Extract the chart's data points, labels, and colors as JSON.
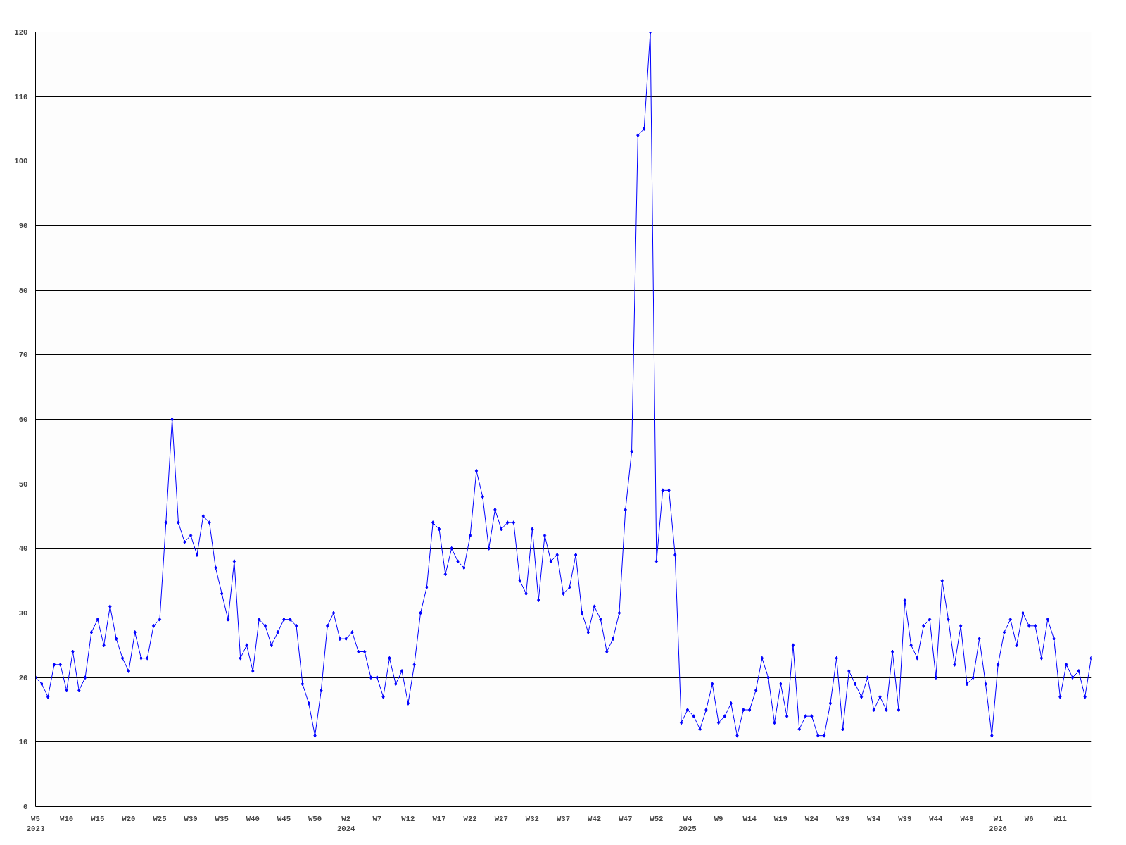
{
  "chart_data": {
    "type": "line",
    "categories": [
      "W5\n2023",
      null,
      null,
      null,
      null,
      "W10",
      null,
      null,
      null,
      null,
      "W15",
      null,
      null,
      null,
      null,
      "W20",
      null,
      null,
      null,
      null,
      "W25",
      null,
      null,
      null,
      null,
      "W30",
      null,
      null,
      null,
      null,
      "W35",
      null,
      null,
      null,
      null,
      "W40",
      null,
      null,
      null,
      null,
      "W45",
      null,
      null,
      null,
      null,
      "W50",
      null,
      null,
      null,
      null,
      "W2\n2024",
      null,
      null,
      null,
      null,
      "W7",
      null,
      null,
      null,
      null,
      "W12",
      null,
      null,
      null,
      null,
      "W17",
      null,
      null,
      null,
      null,
      "W22",
      null,
      null,
      null,
      null,
      "W27",
      null,
      null,
      null,
      null,
      "W32",
      null,
      null,
      null,
      null,
      "W37",
      null,
      null,
      null,
      null,
      "W42",
      null,
      null,
      null,
      null,
      "W47",
      null,
      null,
      null,
      null,
      "W52",
      null,
      null,
      null,
      null,
      "W4\n2025",
      null,
      null,
      null,
      null,
      "W9",
      null,
      null,
      null,
      null,
      "W14",
      null,
      null,
      null,
      null,
      "W19",
      null,
      null,
      null,
      null,
      "W24",
      null,
      null,
      null,
      null,
      "W29",
      null,
      null,
      null,
      null,
      "W34",
      null,
      null,
      null,
      null,
      "W39",
      null,
      null,
      null,
      null,
      "W44",
      null,
      null,
      null,
      null,
      "W49",
      null,
      null,
      null,
      null,
      "W1\n2026",
      null,
      null,
      null,
      null,
      "W6",
      null,
      null,
      null,
      null,
      "W11",
      null,
      null,
      null,
      null,
      null
    ],
    "series": [
      {
        "color": "#0000ff",
        "values": [
          20,
          19,
          17,
          22,
          22,
          18,
          24,
          18,
          20,
          27,
          29,
          25,
          31,
          26,
          23,
          21,
          27,
          23,
          23,
          28,
          29,
          44,
          60,
          44,
          41,
          42,
          39,
          45,
          44,
          37,
          33,
          29,
          38,
          23,
          25,
          21,
          29,
          28,
          25,
          27,
          29,
          29,
          28,
          19,
          16,
          11,
          18,
          28,
          30,
          26,
          26,
          27,
          24,
          24,
          20,
          20,
          17,
          23,
          19,
          21,
          16,
          22,
          30,
          34,
          44,
          43,
          36,
          40,
          38,
          37,
          42,
          52,
          48,
          40,
          46,
          43,
          44,
          44,
          35,
          33,
          43,
          32,
          42,
          38,
          39,
          33,
          34,
          39,
          30,
          27,
          31,
          29,
          24,
          26,
          30,
          46,
          55,
          104,
          105,
          120,
          38,
          49,
          49,
          39,
          13,
          15,
          14,
          12,
          15,
          19,
          13,
          14,
          16,
          11,
          15,
          15,
          18,
          23,
          20,
          13,
          19,
          14,
          25,
          12,
          14,
          14,
          11,
          11,
          16,
          23,
          12,
          21,
          19,
          17,
          20,
          15,
          17,
          15,
          24,
          15,
          32,
          25,
          23,
          28,
          29,
          20,
          35,
          29,
          22,
          28,
          19,
          20,
          26,
          19,
          11,
          22,
          27,
          29,
          25,
          30,
          28,
          28,
          23,
          29,
          26,
          17,
          22,
          20,
          21,
          17,
          23
        ]
      }
    ],
    "ylim": [
      0,
      120
    ],
    "yticks": [
      0,
      10,
      20,
      30,
      40,
      50,
      60,
      70,
      80,
      90,
      100,
      110,
      120
    ],
    "grid": "y",
    "marker": "diamond",
    "line_style": "solid"
  }
}
